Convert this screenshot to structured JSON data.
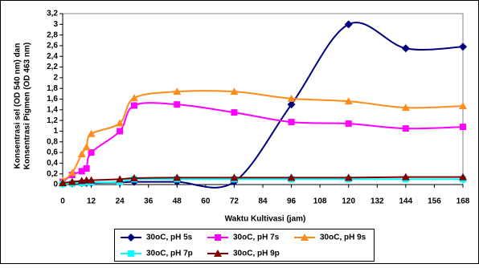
{
  "chart_data": {
    "type": "line",
    "x_label": "Waktu Kultivasi (jam)",
    "y_label": [
      "Konsentrasi sel (OD 540 nm) dan",
      "Konsentrasi Pigmen (OD 463 nm)"
    ],
    "x": [
      0,
      4,
      8,
      10,
      12,
      24,
      30,
      48,
      72,
      96,
      120,
      144,
      168
    ],
    "series": [
      {
        "name": "30oC, pH 5s",
        "color": "#000080",
        "marker": "diamond",
        "values": [
          0.02,
          0.02,
          0.03,
          0.03,
          0.03,
          0.04,
          0.05,
          0.05,
          0.05,
          1.5,
          3.0,
          2.55,
          2.58
        ]
      },
      {
        "name": "30oC, pH 7s",
        "color": "#ff00ff",
        "marker": "square",
        "values": [
          0.05,
          0.18,
          0.25,
          0.3,
          0.6,
          1.0,
          1.48,
          1.5,
          1.35,
          1.17,
          1.14,
          1.05,
          1.08
        ]
      },
      {
        "name": "30oC, pH 9s",
        "color": "#ff8c1a",
        "marker": "triangle",
        "values": [
          0.07,
          0.22,
          0.57,
          0.7,
          0.95,
          1.15,
          1.62,
          1.74,
          1.74,
          1.61,
          1.56,
          1.44,
          1.47
        ]
      },
      {
        "name": "30oC, pH 7p",
        "color": "#00ffff",
        "marker": "square",
        "values": [
          0.01,
          0.02,
          0.03,
          0.04,
          0.04,
          0.05,
          0.1,
          0.1,
          0.1,
          0.1,
          0.1,
          0.1,
          0.1
        ]
      },
      {
        "name": "30oC, pH 9p",
        "color": "#800000",
        "marker": "triangle",
        "values": [
          0.03,
          0.05,
          0.07,
          0.08,
          0.08,
          0.1,
          0.12,
          0.13,
          0.13,
          0.13,
          0.13,
          0.14,
          0.14
        ]
      }
    ],
    "xlim": [
      0,
      168
    ],
    "xticks": [
      0,
      12,
      24,
      36,
      48,
      60,
      72,
      84,
      96,
      108,
      120,
      132,
      144,
      156,
      168
    ],
    "ylim": [
      0,
      3.2
    ],
    "yticks": [
      0,
      {
        "value": 0.2,
        "label": "0,2"
      },
      {
        "value": 0.4,
        "label": "0,4"
      },
      {
        "value": 0.6,
        "label": "0,6"
      },
      {
        "value": 0.8,
        "label": "0,8"
      },
      1,
      {
        "value": 1.2,
        "label": "1,2"
      },
      {
        "value": 1.4,
        "label": "1,4"
      },
      {
        "value": 1.6,
        "label": "1,6"
      },
      {
        "value": 1.8,
        "label": "1,8"
      },
      2,
      {
        "value": 2.2,
        "label": "2,2"
      },
      {
        "value": 2.4,
        "label": "2,4"
      },
      {
        "value": 2.6,
        "label": "2,6"
      },
      {
        "value": 2.8,
        "label": "2,8"
      },
      3,
      {
        "value": 3.2,
        "label": "3,2"
      }
    ],
    "grid": false,
    "legend": "bottom"
  }
}
